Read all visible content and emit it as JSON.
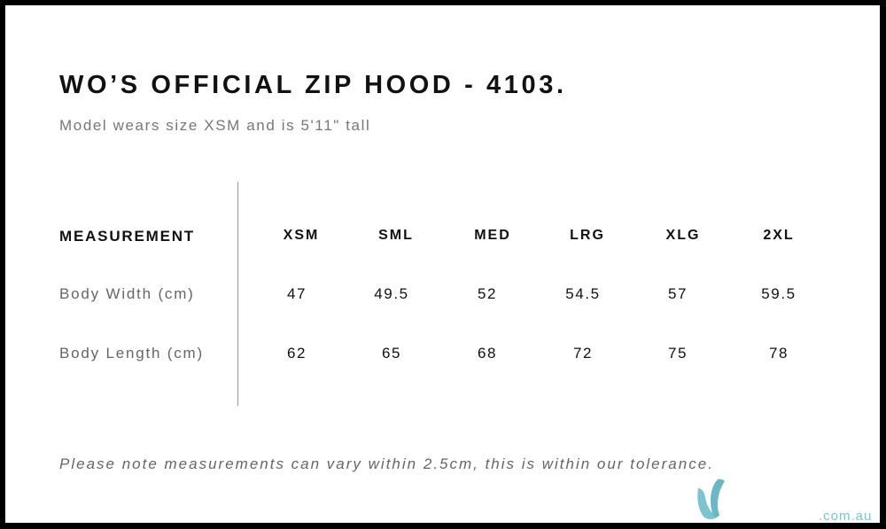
{
  "title": "WO’S OFFICIAL ZIP HOOD - 4103.",
  "subtitle": "Model wears size XSM and is 5'11\" tall",
  "table": {
    "header_label": "MEASUREMENT",
    "sizes": [
      "XSM",
      "SML",
      "MED",
      "LRG",
      "XLG",
      "2XL"
    ],
    "rows": [
      {
        "label": "Body Width (cm)",
        "values": [
          "47",
          "49.5",
          "52",
          "54.5",
          "57",
          "59.5"
        ]
      },
      {
        "label": "Body Length (cm)",
        "values": [
          "62",
          "65",
          "68",
          "72",
          "75",
          "78"
        ]
      }
    ]
  },
  "note": "Please note measurements can vary within 2.5cm, this is within our tolerance.",
  "logo": {
    "text": ".com.au",
    "color": "#7cc4cf"
  }
}
